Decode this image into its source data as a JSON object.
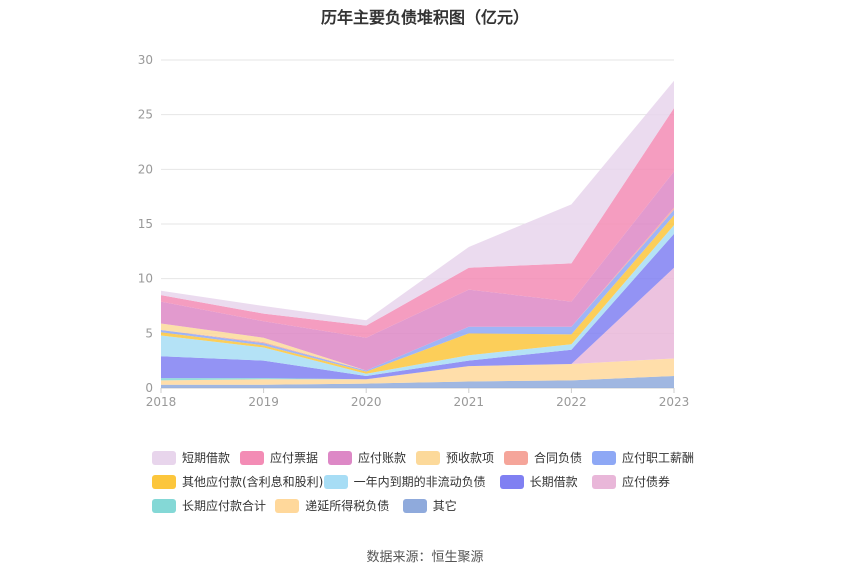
{
  "chart_data": {
    "type": "area",
    "title": "历年主要负债堆积图（亿元）",
    "source": "数据来源：恒生聚源",
    "x": [
      "2018",
      "2019",
      "2020",
      "2021",
      "2022",
      "2023"
    ],
    "ylim": [
      0,
      30
    ],
    "yticks": [
      "0",
      "5",
      "10",
      "15",
      "20",
      "25",
      "30"
    ],
    "stacked": true,
    "grid": true,
    "legend_position": "bottom",
    "series": [
      {
        "name": "其它",
        "color": "#8faadc",
        "values": [
          0.3,
          0.3,
          0.4,
          0.6,
          0.7,
          1.1
        ]
      },
      {
        "name": "递延所得税负债",
        "color": "#ffd89b",
        "values": [
          0.4,
          0.5,
          0.4,
          1.4,
          1.5,
          1.6
        ]
      },
      {
        "name": "长期应付款合计",
        "color": "#84d8d6",
        "values": [
          0.2,
          0.1,
          0.0,
          0.0,
          0.0,
          0.0
        ]
      },
      {
        "name": "应付债券",
        "color": "#e9b7d9",
        "values": [
          0.0,
          0.0,
          0.0,
          0.0,
          0.0,
          8.3
        ]
      },
      {
        "name": "长期借款",
        "color": "#8080f2",
        "values": [
          2.0,
          1.6,
          0.3,
          0.5,
          1.3,
          3.1
        ]
      },
      {
        "name": "一年内到期的非流动负债",
        "color": "#a7ddf5",
        "values": [
          1.9,
          1.2,
          0.2,
          0.5,
          0.5,
          0.8
        ]
      },
      {
        "name": "其他应付款(含利息和股利)",
        "color": "#fcc63c",
        "values": [
          0.3,
          0.2,
          0.2,
          2.0,
          0.9,
          0.9
        ]
      },
      {
        "name": "应付职工薪酬",
        "color": "#8ea8f5",
        "values": [
          0.2,
          0.2,
          0.1,
          0.6,
          0.7,
          0.5
        ]
      },
      {
        "name": "合同负债",
        "color": "#f5a59a",
        "values": [
          0.0,
          0.1,
          0.0,
          0.0,
          0.0,
          0.2
        ]
      },
      {
        "name": "预收款项",
        "color": "#fcd99a",
        "values": [
          0.6,
          0.4,
          0.0,
          0.0,
          0.0,
          0.0
        ]
      },
      {
        "name": "应付账款",
        "color": "#dd88c6",
        "values": [
          2.0,
          1.5,
          3.0,
          3.4,
          2.3,
          3.3
        ]
      },
      {
        "name": "应付票据",
        "color": "#f38cb5",
        "values": [
          0.6,
          0.7,
          1.1,
          2.0,
          3.5,
          5.8
        ]
      },
      {
        "name": "短期借款",
        "color": "#e8d5ec",
        "values": [
          0.4,
          0.7,
          0.5,
          1.9,
          5.4,
          2.5
        ]
      }
    ],
    "legend_order": [
      "短期借款",
      "应付票据",
      "应付账款",
      "预收款项",
      "合同负债",
      "应付职工薪酬",
      "其他应付款(含利息和股利)",
      "一年内到期的非流动负债",
      "长期借款",
      "应付债券",
      "长期应付款合计",
      "递延所得税负债",
      "其它"
    ]
  }
}
